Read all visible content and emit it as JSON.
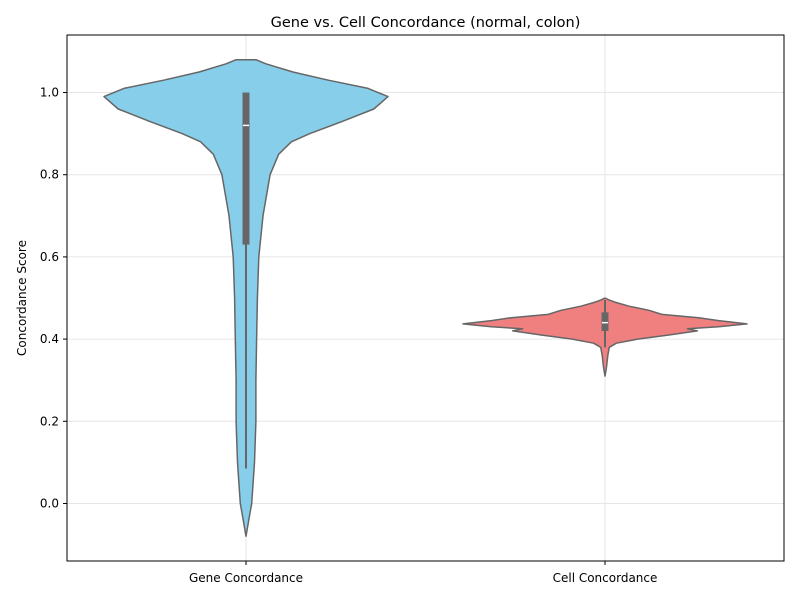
{
  "chart_data": {
    "type": "violin",
    "title": "Gene vs. Cell Concordance (normal, colon)",
    "xlabel": "",
    "ylabel": "Concordance Score",
    "ylim": [
      -0.14,
      1.14
    ],
    "yticks": [
      "0.0",
      "0.2",
      "0.4",
      "0.6",
      "0.8",
      "1.0"
    ],
    "grid": true,
    "categories": [
      "Gene Concordance",
      "Cell Concordance"
    ],
    "series": [
      {
        "category": "Gene Concordance",
        "color": "#87CEEB",
        "range": [
          -0.08,
          1.08
        ],
        "quartiles": {
          "q1": 0.63,
          "median": 0.92,
          "q3": 1.0
        },
        "whiskers": [
          0.085,
          1.0
        ],
        "profile": [
          [
            -0.08,
            0.0
          ],
          [
            -0.04,
            0.02
          ],
          [
            0.0,
            0.04
          ],
          [
            0.05,
            0.05
          ],
          [
            0.1,
            0.06
          ],
          [
            0.2,
            0.07
          ],
          [
            0.3,
            0.07
          ],
          [
            0.4,
            0.075
          ],
          [
            0.5,
            0.08
          ],
          [
            0.6,
            0.09
          ],
          [
            0.7,
            0.12
          ],
          [
            0.8,
            0.17
          ],
          [
            0.85,
            0.23
          ],
          [
            0.88,
            0.32
          ],
          [
            0.9,
            0.45
          ],
          [
            0.93,
            0.68
          ],
          [
            0.96,
            0.9
          ],
          [
            0.99,
            1.0
          ],
          [
            1.01,
            0.86
          ],
          [
            1.03,
            0.58
          ],
          [
            1.05,
            0.33
          ],
          [
            1.07,
            0.14
          ],
          [
            1.08,
            0.07
          ]
        ]
      },
      {
        "category": "Cell Concordance",
        "color": "#F08080",
        "range": [
          0.31,
          0.5
        ],
        "quartiles": {
          "q1": 0.42,
          "median": 0.44,
          "q3": 0.465
        },
        "whiskers": [
          0.38,
          0.495
        ],
        "profile": [
          [
            0.31,
            0.0
          ],
          [
            0.33,
            0.01
          ],
          [
            0.36,
            0.02
          ],
          [
            0.38,
            0.03
          ],
          [
            0.39,
            0.08
          ],
          [
            0.4,
            0.23
          ],
          [
            0.41,
            0.45
          ],
          [
            0.42,
            0.65
          ],
          [
            0.425,
            0.58
          ],
          [
            0.43,
            0.8
          ],
          [
            0.437,
            1.0
          ],
          [
            0.445,
            0.8
          ],
          [
            0.452,
            0.66
          ],
          [
            0.46,
            0.4
          ],
          [
            0.47,
            0.31
          ],
          [
            0.48,
            0.17
          ],
          [
            0.49,
            0.07
          ],
          [
            0.495,
            0.03
          ],
          [
            0.5,
            0.0
          ]
        ]
      }
    ]
  }
}
